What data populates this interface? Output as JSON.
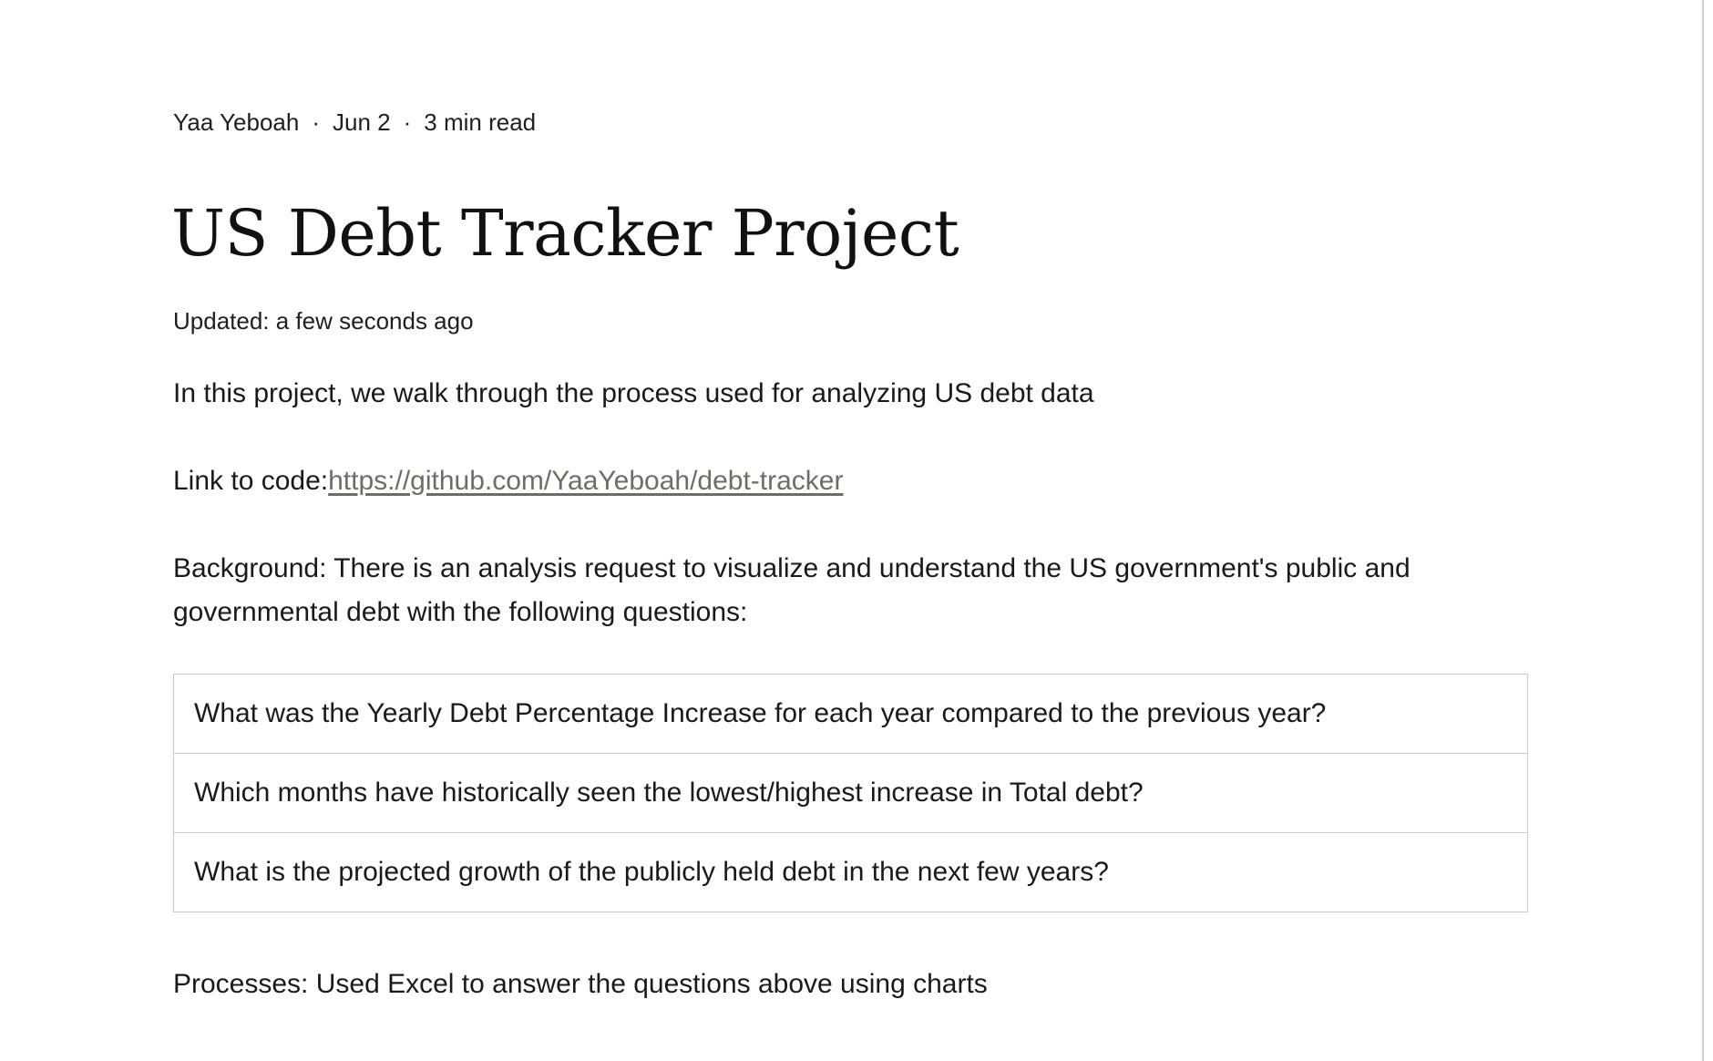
{
  "post": {
    "author": "Yaa Yeboah",
    "separator": "·",
    "date": "Jun 2",
    "read_time": "3 min read",
    "title": "US Debt Tracker Project",
    "updated": "Updated: a few seconds ago",
    "intro": "In this project, we walk through the process used for analyzing US debt data",
    "link_label": "Link to code:",
    "link_url": "https://github.com/YaaYeboah/debt-tracker",
    "background": "Background: There is an analysis request to visualize and understand the US government's public and governmental debt with the following questions:",
    "questions": [
      "What was the Yearly Debt Percentage Increase for each year compared to the previous year?",
      "Which months have historically seen the lowest/highest increase in Total debt?",
      "What is the projected growth of the publicly held debt in the next few years?"
    ],
    "processes": "Processes: Used Excel to answer the questions above using charts"
  }
}
